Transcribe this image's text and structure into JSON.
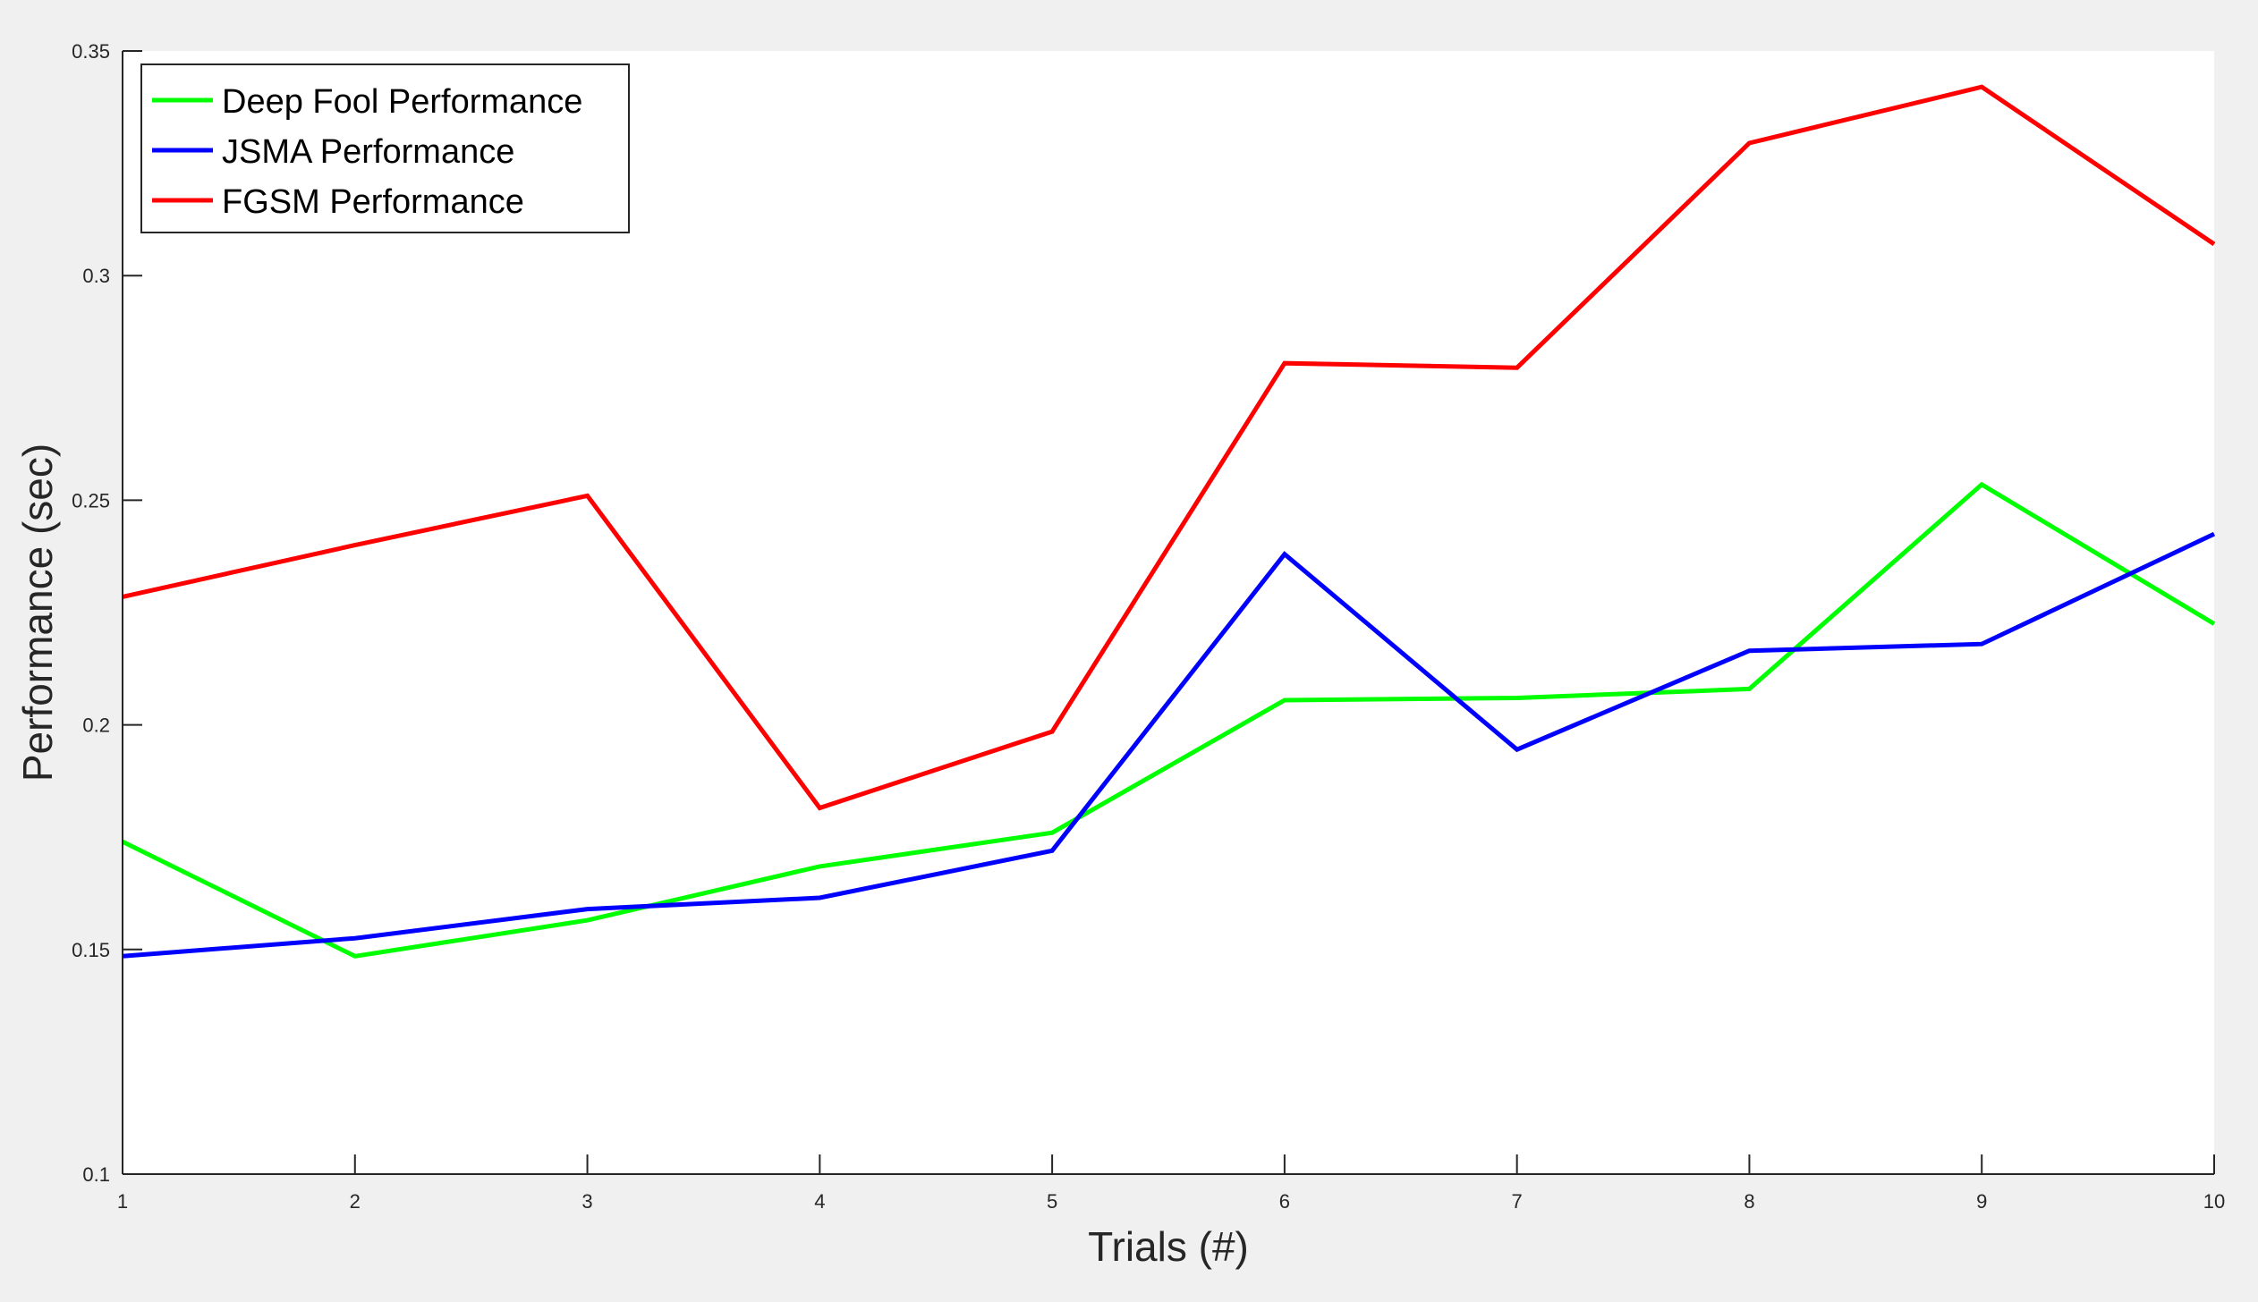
{
  "figure": {
    "background_color": "#f0f0f0",
    "axes_color": "#ffffff"
  },
  "chart_data": {
    "type": "line",
    "title": "",
    "xlabel": "Trials (#)",
    "ylabel": "Performance (sec)",
    "xlim": [
      1,
      10
    ],
    "ylim": [
      0.1,
      0.35
    ],
    "x": [
      1,
      2,
      3,
      4,
      5,
      6,
      7,
      8,
      9,
      10
    ],
    "xticks": [
      1,
      2,
      3,
      4,
      5,
      6,
      7,
      8,
      9,
      10
    ],
    "xtick_labels": [
      "1",
      "2",
      "3",
      "4",
      "5",
      "6",
      "7",
      "8",
      "9",
      "10"
    ],
    "yticks": [
      0.1,
      0.15,
      0.2,
      0.25,
      0.3,
      0.35
    ],
    "ytick_labels": [
      "0.1",
      "0.15",
      "0.2",
      "0.25",
      "0.3",
      "0.35"
    ],
    "grid": false,
    "legend_position": "top-left",
    "series": [
      {
        "name": "Deep Fool Performance",
        "color": "#00ff00",
        "values": [
          0.174,
          0.1485,
          0.1565,
          0.1685,
          0.176,
          0.2055,
          0.206,
          0.208,
          0.2535,
          0.2225
        ]
      },
      {
        "name": "JSMA Performance",
        "color": "#0000ff",
        "values": [
          0.1485,
          0.1525,
          0.159,
          0.1615,
          0.172,
          0.238,
          0.1945,
          0.2165,
          0.218,
          0.2425
        ]
      },
      {
        "name": "FGSM Performance",
        "color": "#ff0000",
        "values": [
          0.2285,
          0.24,
          0.251,
          0.1815,
          0.1985,
          0.2805,
          0.2795,
          0.3295,
          0.342,
          0.307
        ]
      }
    ]
  }
}
